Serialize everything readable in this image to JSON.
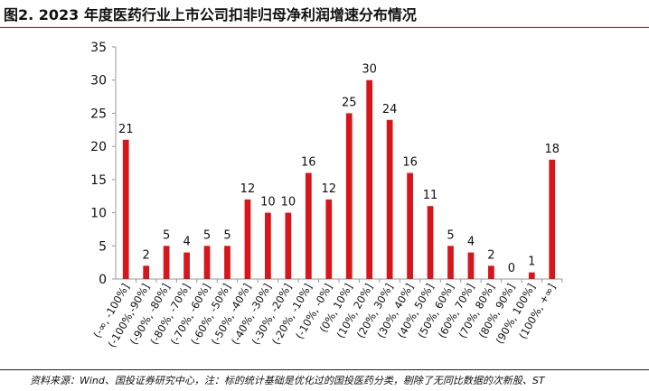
{
  "header": {
    "title": "图2. 2023 年度医药行业上市公司扣非归母净利润增速分布情况"
  },
  "footer": {
    "source": "资料来源：Wind、国投证券研究中心，注：标的统计基础是优化过的国投医药分类，剔除了无同比数据的次新股、ST"
  },
  "colors": {
    "bar": "#d7151b",
    "axis": "#999999",
    "text": "#111111",
    "accent_rule": "#c8161d"
  },
  "chart_data": {
    "type": "bar",
    "title": "",
    "xlabel": "",
    "ylabel": "",
    "ylim": [
      0,
      35
    ],
    "yticks": [
      0,
      5,
      10,
      15,
      20,
      25,
      30,
      35
    ],
    "grid": false,
    "legend": "none",
    "categories": [
      "(-∞, -100%]",
      "(-100%,-90%]",
      "(-90%, -80%]",
      "(-80%, -70%]",
      "(-70%, -60%]",
      "(-60%, -50%]",
      "(-50%, -40%]",
      "(-40%, -30%]",
      "(-30%, -20%]",
      "(-20%, -10%]",
      "(-10%, -0%]",
      "(0%, 10%]",
      "(10%, 20%]",
      "(20%, 30%]",
      "(30%, 40%]",
      "(40%, 50%]",
      "(50%, 60%]",
      "(60%, 70%]",
      "(70%, 80%]",
      "(80%, 90%]",
      "(90%, 100%]",
      "(100%, +∞]"
    ],
    "values": [
      21,
      2,
      5,
      4,
      5,
      5,
      12,
      10,
      10,
      16,
      12,
      25,
      30,
      24,
      16,
      11,
      5,
      4,
      2,
      0,
      1,
      18
    ]
  }
}
